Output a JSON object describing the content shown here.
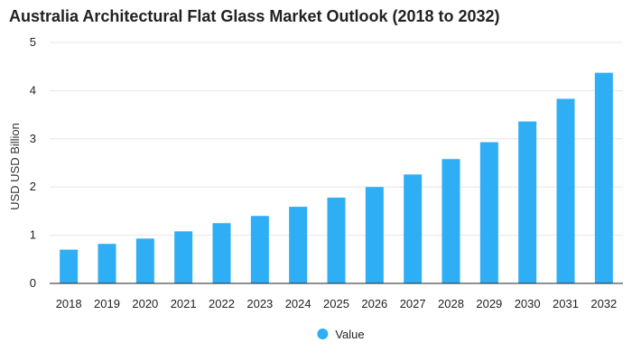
{
  "chart_data": {
    "type": "bar",
    "title": "Australia Architectural Flat Glass Market Outlook (2018 to 2032)",
    "xlabel": "",
    "ylabel": "USD USD Billion",
    "categories": [
      "2018",
      "2019",
      "2020",
      "2021",
      "2022",
      "2023",
      "2024",
      "2025",
      "2026",
      "2027",
      "2028",
      "2029",
      "2030",
      "2031",
      "2032"
    ],
    "series": [
      {
        "name": "Value",
        "values": [
          0.7,
          0.82,
          0.93,
          1.08,
          1.25,
          1.4,
          1.59,
          1.78,
          2.0,
          2.26,
          2.58,
          2.93,
          3.36,
          3.83,
          4.37
        ]
      }
    ],
    "ylim": [
      0,
      5
    ],
    "yticks": [
      "0",
      "1",
      "2",
      "3",
      "4",
      "5"
    ],
    "grid": true,
    "legend_position": "bottom-center",
    "colors": {
      "bar": "#2eaef5",
      "grid": "#e6e6e6",
      "axis": "#222222"
    }
  }
}
